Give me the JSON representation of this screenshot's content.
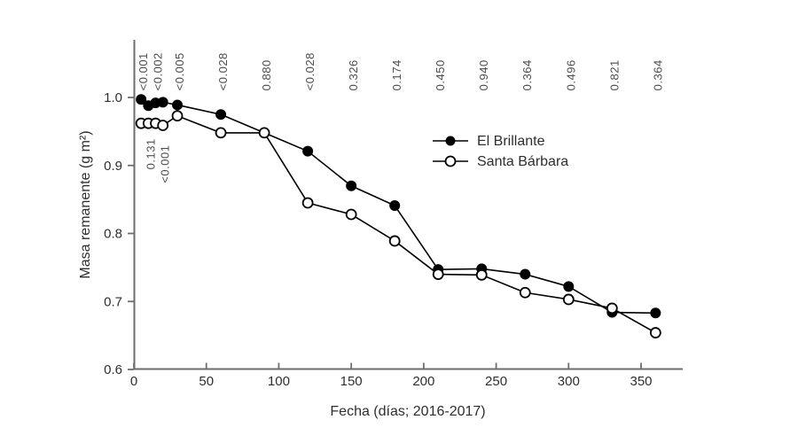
{
  "figure": {
    "background": "#ffffff",
    "axis_color": "#6e6e6e",
    "data_color": "#000000",
    "annotation_color": "#4d4d4d"
  },
  "chart_data": {
    "type": "line",
    "title": "",
    "xlabel": "Fecha (días; 2016-2017)",
    "ylabel": "Masa remanente (g m²)",
    "xlim": [
      0,
      378
    ],
    "ylim": [
      0.6,
      1.02
    ],
    "grid": "off",
    "legend_position": "inside-upper-right",
    "x_ticks": [
      0,
      50,
      100,
      150,
      200,
      250,
      300,
      350
    ],
    "y_ticks": [
      1.0,
      0.9,
      0.8,
      0.7,
      0.6
    ],
    "y_tick_labels": [
      "1.0",
      "0.9",
      "0.8",
      "0.7",
      "0.6"
    ],
    "x": [
      5,
      10,
      15,
      20,
      30,
      60,
      90,
      120,
      150,
      180,
      210,
      240,
      270,
      300,
      330,
      360
    ],
    "series": [
      {
        "name": "El Brillante",
        "marker": "filled-circle",
        "values": [
          0.997,
          0.988,
          0.992,
          0.993,
          0.989,
          0.975,
          0.948,
          0.921,
          0.87,
          0.841,
          0.747,
          0.748,
          0.74,
          0.722,
          0.684,
          0.683
        ]
      },
      {
        "name": "Santa Bárbara",
        "marker": "open-circle",
        "values": [
          0.962,
          0.962,
          0.962,
          0.959,
          0.973,
          0.948,
          0.948,
          0.845,
          0.828,
          0.789,
          0.74,
          0.739,
          0.713,
          0.703,
          0.69,
          0.654
        ]
      }
    ],
    "p_value_annotations": {
      "baseline_value": 1.01,
      "top": [
        {
          "label": "<0.001",
          "day": 5
        },
        {
          "label": "<0.002",
          "day": 15
        },
        {
          "label": "<0.005",
          "day": 30
        },
        {
          "label": "<0.028",
          "day": 60
        },
        {
          "label": "0.880",
          "day": 90
        },
        {
          "label": "<0.028",
          "day": 120
        },
        {
          "label": "0.326",
          "day": 150
        },
        {
          "label": "0.174",
          "day": 180
        },
        {
          "label": "0.450",
          "day": 210
        },
        {
          "label": "0.940",
          "day": 240
        },
        {
          "label": "0.364",
          "day": 270
        },
        {
          "label": "0.496",
          "day": 300
        },
        {
          "label": "0.821",
          "day": 330
        },
        {
          "label": "0.364",
          "day": 360
        }
      ],
      "inner": [
        {
          "label": "0.131",
          "day": 10,
          "value_anchor": 0.894
        },
        {
          "label": "<0.001",
          "day": 20,
          "value_anchor": 0.874
        }
      ]
    }
  }
}
